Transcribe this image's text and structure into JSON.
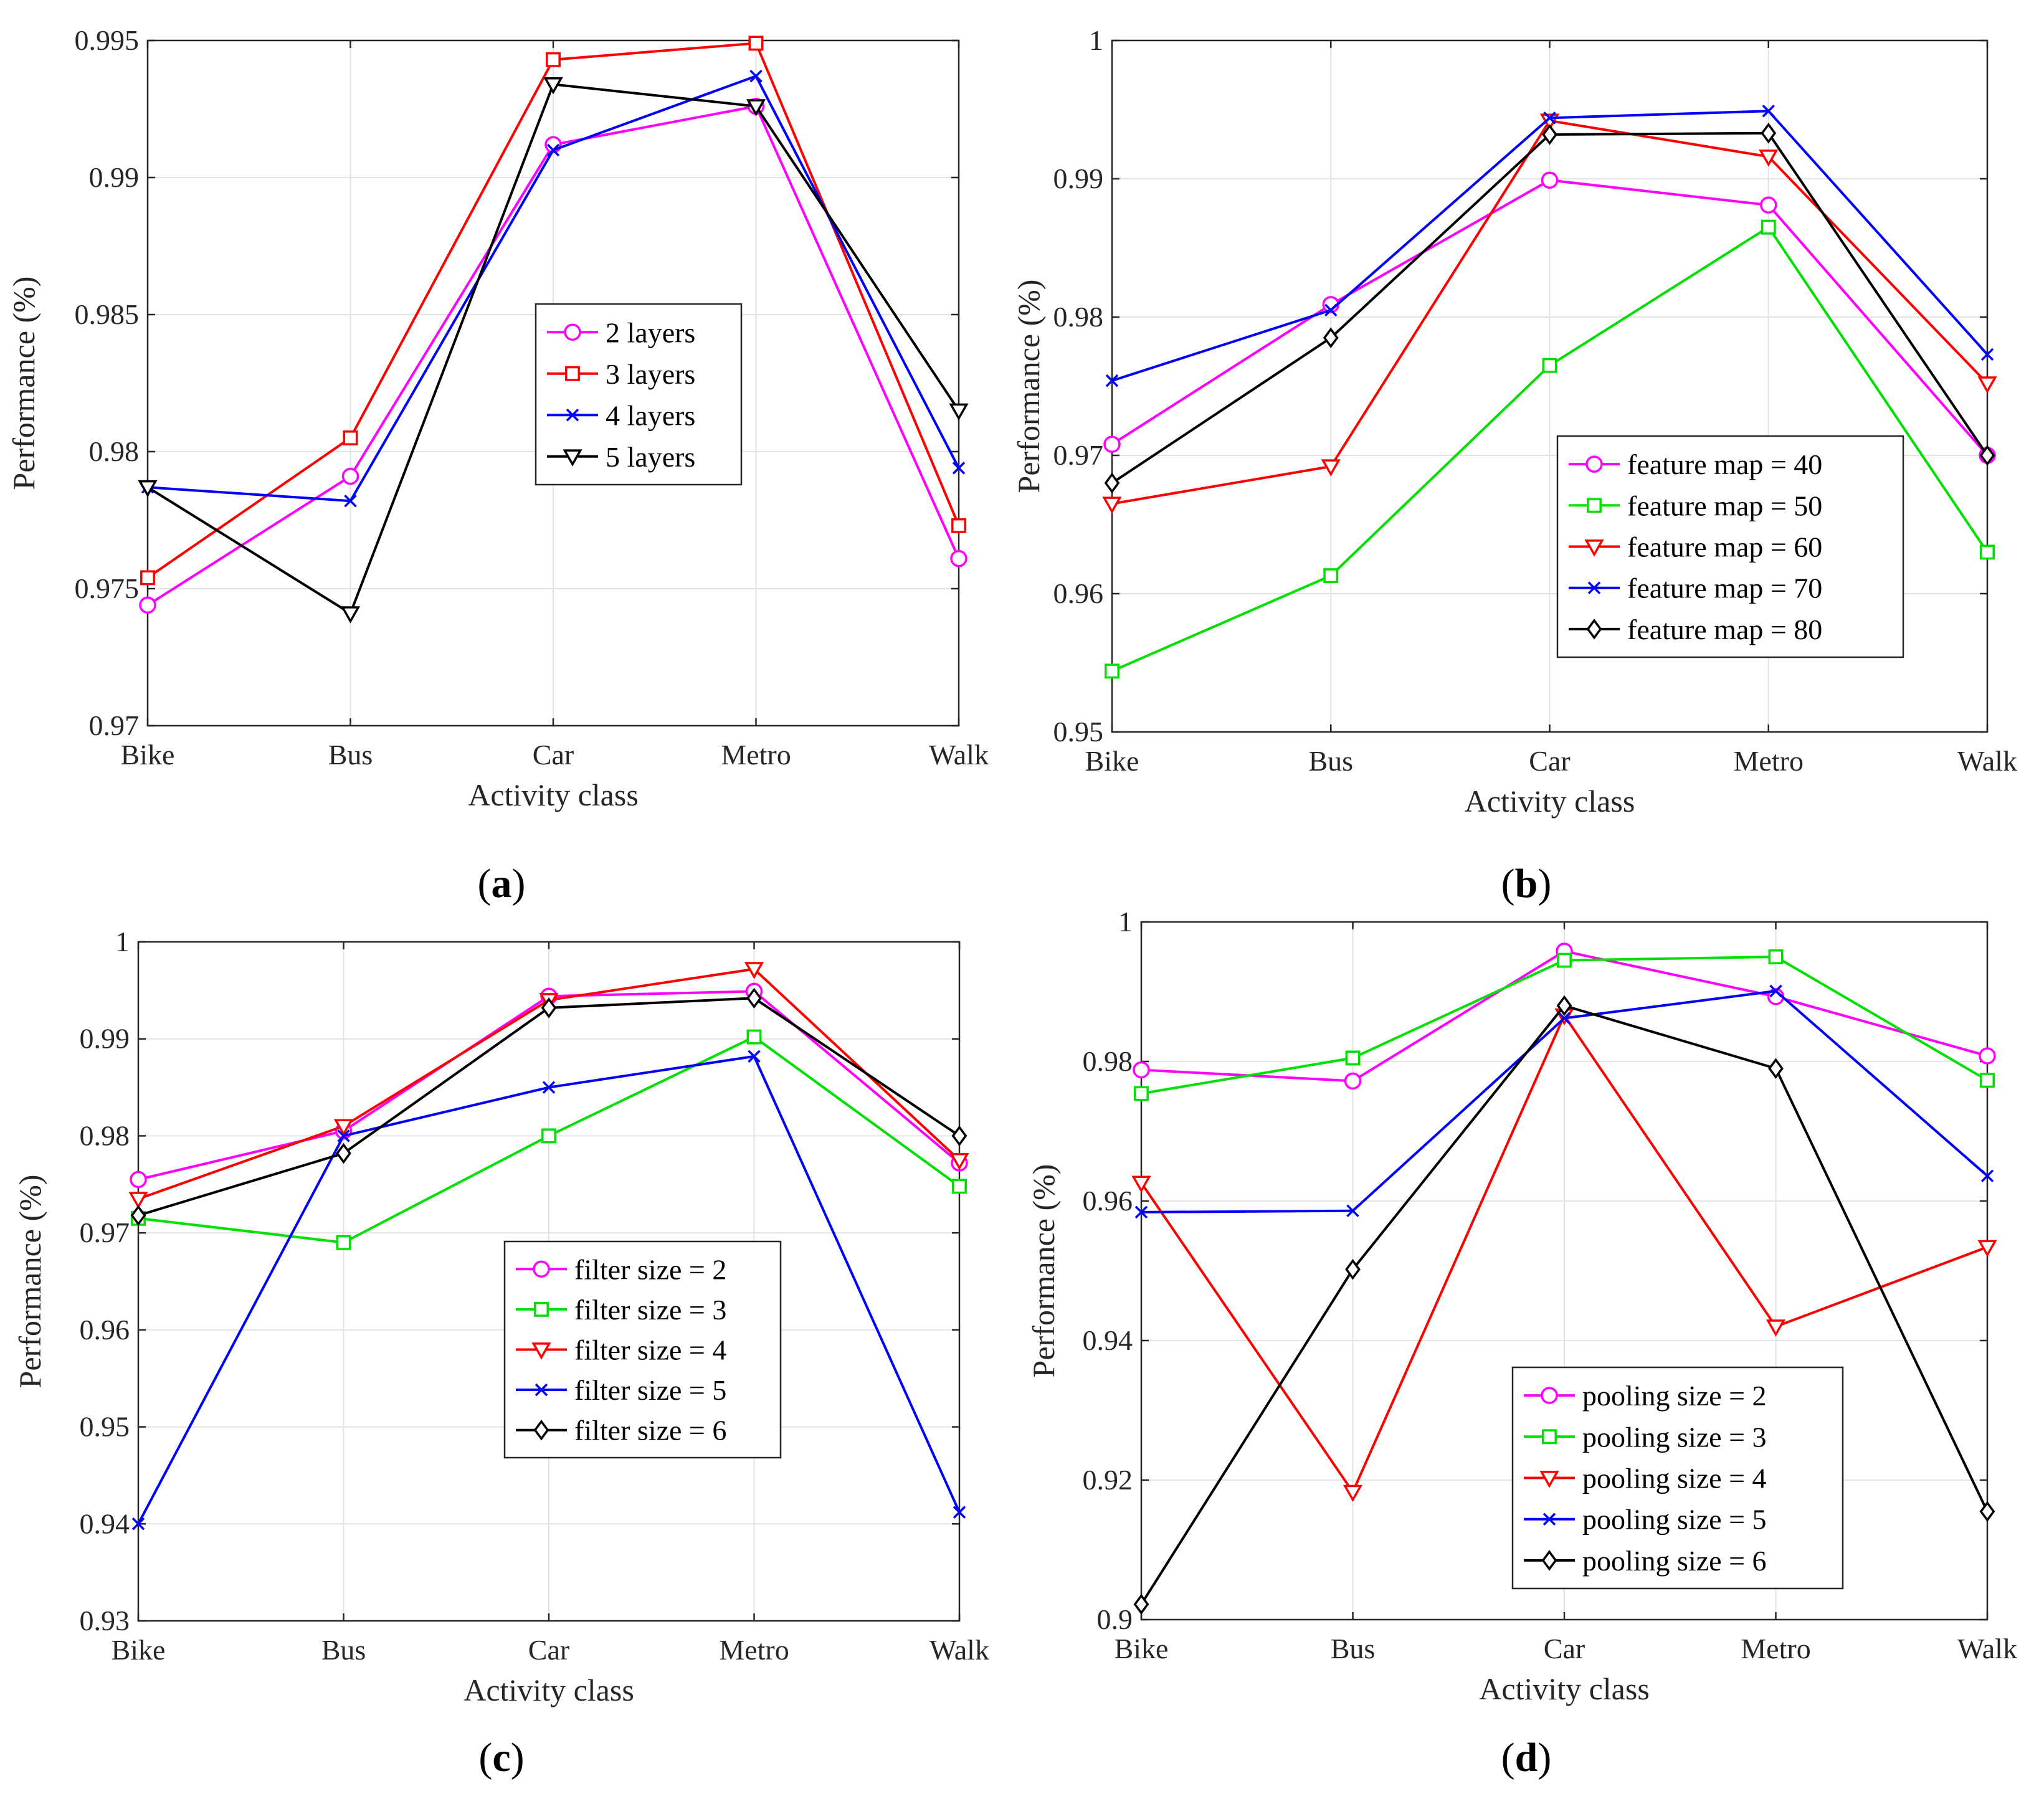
{
  "colors": {
    "magenta": "#ff00ff",
    "green": "#00e000",
    "red": "#ff0000",
    "blue": "#0000ff",
    "black": "#000000"
  },
  "chart_data": [
    {
      "type": "line",
      "panel_label": "a",
      "title": "",
      "xlabel": "Activity class",
      "ylabel": "Performance (%)",
      "categories": [
        "Bike",
        "Bus",
        "Car",
        "Metro",
        "Walk"
      ],
      "ylim": [
        0.97,
        0.995
      ],
      "yticks": [
        "0.97",
        "0.975",
        "0.98",
        "0.985",
        "0.99",
        "0.995"
      ],
      "grid": true,
      "legend_position": "center",
      "series": [
        {
          "name": "2 layers",
          "color": "#ff00ff",
          "marker": "circle",
          "values": [
            0.9744,
            0.9791,
            0.9912,
            0.9926,
            0.9761
          ]
        },
        {
          "name": "3 layers",
          "color": "#ff0000",
          "marker": "square",
          "values": [
            0.9754,
            0.9805,
            0.9943,
            0.9949,
            0.9773
          ]
        },
        {
          "name": "4 layers",
          "color": "#0000ff",
          "marker": "x",
          "values": [
            0.9787,
            0.9782,
            0.991,
            0.9937,
            0.9794
          ]
        },
        {
          "name": "5 layers",
          "color": "#000000",
          "marker": "triangle-down",
          "values": [
            0.9787,
            0.9741,
            0.9934,
            0.9926,
            0.9815
          ]
        }
      ]
    },
    {
      "type": "line",
      "panel_label": "b",
      "title": "",
      "xlabel": "Activity class",
      "ylabel": "Performance (%)",
      "categories": [
        "Bike",
        "Bus",
        "Car",
        "Metro",
        "Walk"
      ],
      "ylim": [
        0.95,
        1.0
      ],
      "yticks": [
        "0.95",
        "0.96",
        "0.97",
        "0.98",
        "0.99",
        "1"
      ],
      "grid": true,
      "legend_position": "bottom-right",
      "series": [
        {
          "name": "feature map = 40",
          "color": "#ff00ff",
          "marker": "circle",
          "values": [
            0.9708,
            0.9809,
            0.9899,
            0.9881,
            0.97
          ]
        },
        {
          "name": "feature map = 50",
          "color": "#00e000",
          "marker": "square",
          "values": [
            0.9544,
            0.9613,
            0.9765,
            0.9865,
            0.963
          ]
        },
        {
          "name": "feature map = 60",
          "color": "#ff0000",
          "marker": "triangle-down",
          "values": [
            0.9665,
            0.9692,
            0.9942,
            0.9916,
            0.9752
          ]
        },
        {
          "name": "feature map = 70",
          "color": "#0000ff",
          "marker": "x",
          "values": [
            0.9754,
            0.9805,
            0.9944,
            0.9949,
            0.9773
          ]
        },
        {
          "name": "feature map = 80",
          "color": "#000000",
          "marker": "diamond",
          "values": [
            0.968,
            0.9785,
            0.9932,
            0.9933,
            0.97
          ]
        }
      ]
    },
    {
      "type": "line",
      "panel_label": "c",
      "title": "",
      "xlabel": "Activity class",
      "ylabel": "Performance (%)",
      "categories": [
        "Bike",
        "Bus",
        "Car",
        "Metro",
        "Walk"
      ],
      "ylim": [
        0.93,
        1.0
      ],
      "yticks": [
        "0.93",
        "0.94",
        "0.95",
        "0.96",
        "0.97",
        "0.98",
        "0.99",
        "1"
      ],
      "grid": true,
      "legend_position": "center-bottom",
      "series": [
        {
          "name": "filter size = 2",
          "color": "#ff00ff",
          "marker": "circle",
          "values": [
            0.9755,
            0.9805,
            0.9944,
            0.9949,
            0.9772
          ]
        },
        {
          "name": "filter size = 3",
          "color": "#00e000",
          "marker": "square",
          "values": [
            0.9715,
            0.969,
            0.98,
            0.9902,
            0.9748
          ]
        },
        {
          "name": "filter size = 4",
          "color": "#ff0000",
          "marker": "triangle-down",
          "values": [
            0.9735,
            0.981,
            0.994,
            0.9972,
            0.9775
          ]
        },
        {
          "name": "filter size = 5",
          "color": "#0000ff",
          "marker": "x",
          "values": [
            0.94,
            0.98,
            0.985,
            0.9882,
            0.9412
          ]
        },
        {
          "name": "filter size = 6",
          "color": "#000000",
          "marker": "diamond",
          "values": [
            0.9718,
            0.9782,
            0.9932,
            0.9942,
            0.98
          ]
        }
      ]
    },
    {
      "type": "line",
      "panel_label": "d",
      "title": "",
      "xlabel": "Activity class",
      "ylabel": "Performance (%)",
      "categories": [
        "Bike",
        "Bus",
        "Car",
        "Metro",
        "Walk"
      ],
      "ylim": [
        0.9,
        1.0
      ],
      "yticks": [
        "0.9",
        "0.92",
        "0.94",
        "0.96",
        "0.98",
        "1"
      ],
      "grid": true,
      "legend_position": "center-bottom",
      "series": [
        {
          "name": "pooling size = 2",
          "color": "#ff00ff",
          "marker": "circle",
          "values": [
            0.9788,
            0.9772,
            0.9958,
            0.9893,
            0.9808
          ]
        },
        {
          "name": "pooling size = 3",
          "color": "#00e000",
          "marker": "square",
          "values": [
            0.9754,
            0.9805,
            0.9945,
            0.995,
            0.9773
          ]
        },
        {
          "name": "pooling size = 4",
          "color": "#ff0000",
          "marker": "triangle-down",
          "values": [
            0.9626,
            0.9183,
            0.9866,
            0.942,
            0.9534
          ]
        },
        {
          "name": "pooling size = 5",
          "color": "#0000ff",
          "marker": "x",
          "values": [
            0.9584,
            0.9586,
            0.9862,
            0.9901,
            0.9636
          ]
        },
        {
          "name": "pooling size = 6",
          "color": "#000000",
          "marker": "diamond",
          "values": [
            0.9022,
            0.9502,
            0.988,
            0.979,
            0.9155
          ]
        }
      ]
    }
  ]
}
